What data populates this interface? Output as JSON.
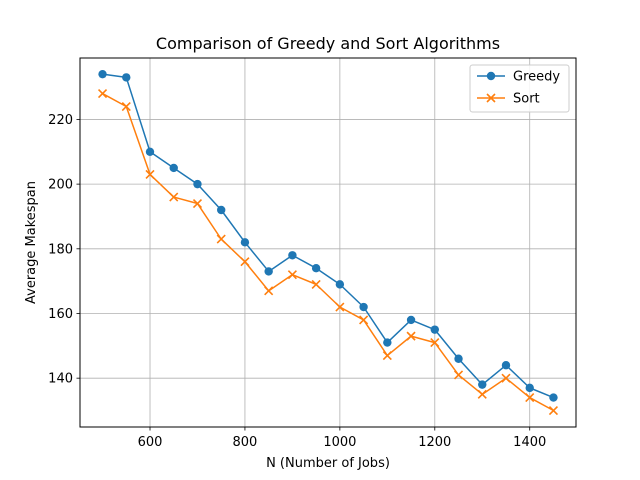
{
  "chart_data": {
    "type": "line",
    "title": "Comparison of Greedy and Sort Algorithms",
    "xlabel": "N (Number of Jobs)",
    "ylabel": "Average Makespan",
    "xlim": [
      452.5,
      1497.5
    ],
    "ylim": [
      124.9,
      239.0
    ],
    "xticks": [
      600,
      800,
      1000,
      1200,
      1400
    ],
    "yticks": [
      140,
      160,
      180,
      200,
      220
    ],
    "grid": true,
    "legend_position": "top-right",
    "x": [
      500,
      550,
      600,
      650,
      700,
      750,
      800,
      850,
      900,
      950,
      1000,
      1050,
      1100,
      1150,
      1200,
      1250,
      1300,
      1350,
      1400,
      1450
    ],
    "series": [
      {
        "name": "Greedy",
        "color": "#1f77b4",
        "marker": "circle",
        "values": [
          234,
          233,
          210,
          205,
          200,
          192,
          182,
          173,
          178,
          174,
          169,
          162,
          151,
          158,
          155,
          146,
          138,
          144,
          137,
          134
        ]
      },
      {
        "name": "Sort",
        "color": "#ff7f0e",
        "marker": "x",
        "values": [
          228,
          224,
          203,
          196,
          194,
          183,
          176,
          167,
          172,
          169,
          162,
          158,
          147,
          153,
          151,
          141,
          135,
          140,
          134,
          130
        ]
      }
    ]
  }
}
